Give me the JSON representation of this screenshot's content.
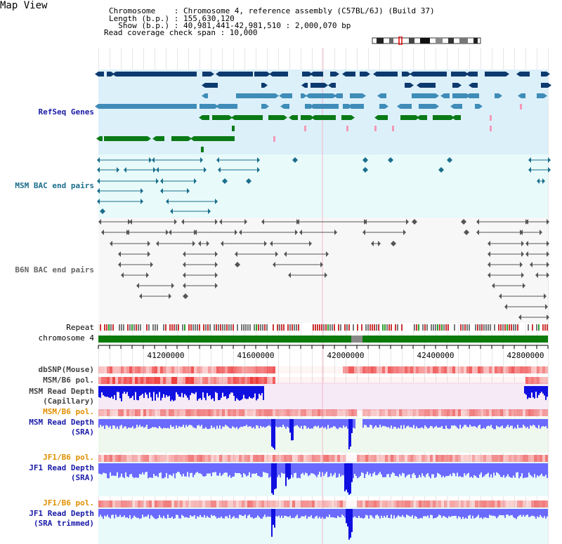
{
  "page_title": "Map View",
  "header": {
    "chromosome_label": "Chromosome    : Chromosome 4, reference assembly (C57BL/6J) (Build 37)",
    "length_label": "Length (b.p.) : 155,630,120",
    "show_label": "  Show (b.p.) : 40,981,441-42,981,510 : 2,000,070 bp",
    "coverage_label": "Read coverage check span : 10,000"
  },
  "tracks": {
    "refseq": "RefSeq Genes",
    "msm_bac": "MSM BAC end pairs",
    "b6n_bac": "B6N BAC end pairs",
    "repeat": "Repeat",
    "chromosome": "chromosome 4",
    "dbsnp": "dbSNP(Mouse)",
    "msm_b6_pol": "MSM/B6 pol.",
    "msm_read_depth_cap_1": "MSM Read Depth",
    "msm_read_depth_cap_2": "(Capillary)",
    "msm_b6_pol_2": "MSM/B6 pol.",
    "msm_read_depth_sra_1": "MSM Read Depth",
    "msm_read_depth_sra_2": "(SRA)",
    "jf1_b6_pol": "JF1/B6 pol.",
    "jf1_read_depth_1": "JF1 Read Depth",
    "jf1_read_depth_2": "(SRA)",
    "jf1_b6_pol_2": "JF1/B6 pol.",
    "jf1_trim_1": "JF1 Read Depth",
    "jf1_trim_2": "(SRA trimmed)"
  },
  "axis": {
    "ticks": [
      "41200000",
      "41600000",
      "42000000",
      "42400000",
      "42800000"
    ]
  },
  "colors": {
    "refseq_bg": "#dcf0fa",
    "bac_bg": "#e8fafa",
    "gene_dark": "#0d3a6e",
    "gene_mid": "#3f8cb8",
    "gene_green": "#0a7a16",
    "pink": "#f39ab8",
    "msm_bac": "#1a6e8c",
    "b6n_bac": "#555555",
    "chromosome": "#0a7a0a",
    "depth_blue": "#6a6aff",
    "depth_dark": "#1010e0",
    "msm_label": "#1a1aa8",
    "jf1_label": "#e09000",
    "track_label_default": "#333333"
  }
}
